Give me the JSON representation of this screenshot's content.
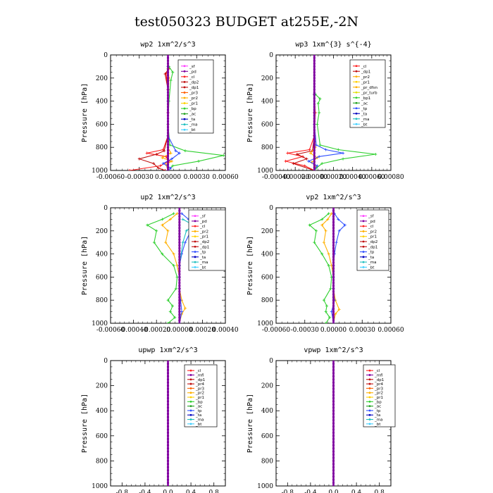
{
  "figure_title": "test050323  BUDGET at255E,-2N",
  "chart_data": [
    {
      "type": "line",
      "title": "wp2   1xm^2/s^3",
      "ylabel": "Pressure [hPa]",
      "xlim": [
        -0.0006,
        0.0006
      ],
      "xticks": [
        -0.0006,
        -0.0003,
        0.0,
        0.0003,
        0.0006
      ],
      "xtick_labels": [
        "-0.00060",
        "-0.00030",
        "0.00000",
        "0.00030",
        "0.00060"
      ],
      "ylim": [
        1000,
        0
      ],
      "yticks": [
        0,
        200,
        400,
        600,
        800,
        1000
      ],
      "ytick_labels": [
        "0",
        "200",
        "400",
        "600",
        "800",
        "1000"
      ],
      "legend": [
        "_sf",
        "_pd",
        "_cl",
        "_dp2",
        "_dp1",
        "_pr3",
        "_pr2",
        "_pr1",
        "_bp",
        "_ac",
        "_ta",
        "_ma",
        "_bt"
      ],
      "series": [
        {
          "name": "_cl",
          "color": "#ff2020",
          "pressure": [
            120,
            160,
            300,
            500,
            700,
            820,
            850,
            880,
            920,
            960,
            1000
          ],
          "values": [
            0.0,
            -2e-05,
            0.0,
            0.0,
            0.0,
            -5e-05,
            -0.00022,
            -2e-05,
            1e-05,
            -8e-05,
            -0.0004
          ]
        },
        {
          "name": "_dp2",
          "color": "#c01010",
          "pressure": [
            120,
            165,
            300,
            500,
            700,
            830,
            860,
            900,
            940,
            980,
            1000
          ],
          "values": [
            1e-05,
            -3e-05,
            0.0,
            0.0,
            0.0,
            -4e-05,
            -0.00012,
            -0.0003,
            -0.00015,
            -0.0001,
            -3e-05
          ]
        },
        {
          "name": "_pr1",
          "color": "#ffb000",
          "pressure": [
            120,
            200,
            400,
            600,
            800,
            850,
            890,
            920,
            950,
            1000
          ],
          "values": [
            0.0,
            1e-05,
            0.0,
            0.0,
            0.0,
            3e-05,
            -6e-05,
            4e-05,
            -2e-05,
            0.0
          ]
        },
        {
          "name": "_bp",
          "color": "#30d030",
          "pressure": [
            100,
            150,
            220,
            400,
            600,
            780,
            830,
            870,
            920,
            960,
            1000
          ],
          "values": [
            1e-05,
            5e-05,
            3e-05,
            1e-05,
            0.0,
            2e-05,
            0.00018,
            0.00058,
            0.00032,
            5e-05,
            0.0
          ]
        },
        {
          "name": "_ac",
          "color": "#3050ff",
          "pressure": [
            100,
            400,
            700,
            830,
            850,
            900,
            940,
            980,
            1000
          ],
          "values": [
            0.0,
            0.0,
            0.0,
            8e-05,
            0.00012,
            4e-05,
            -5e-05,
            3e-05,
            0.0
          ]
        },
        {
          "name": "_bt",
          "color": "#8000a0",
          "pressure": [
            0,
            200,
            400,
            600,
            800,
            1000
          ],
          "values": [
            0.0,
            0.0,
            0.0,
            0.0,
            0.0,
            0.0
          ]
        }
      ]
    },
    {
      "type": "line",
      "title": "wp3   1xm^{3} s^{-4}",
      "ylabel": "Pressure [hPa]",
      "xlim": [
        -0.0004,
        0.0008
      ],
      "xticks": [
        -0.0004,
        -0.0002,
        0.0,
        0.0002,
        0.0004,
        0.0006,
        0.0008
      ],
      "xtick_labels": [
        "-0.00040",
        "-0.00020",
        "0.00000",
        "0.00020",
        "0.00040",
        "0.00060",
        "0.00080"
      ],
      "ylim": [
        1000,
        0
      ],
      "yticks": [
        0,
        200,
        400,
        600,
        800,
        1000
      ],
      "ytick_labels": [
        "0",
        "200",
        "400",
        "600",
        "800",
        "1000"
      ],
      "legend": [
        "_cl",
        "_dp1",
        "_pr2",
        "_pr1",
        "_pr_dfsn",
        "_pr_turb",
        "_bp1",
        "_ac",
        "_tp",
        "_ta",
        "_ma",
        "_bt"
      ],
      "series": [
        {
          "name": "_cl",
          "color": "#ff2020",
          "pressure": [
            340,
            500,
            700,
            820,
            850,
            880,
            920,
            960,
            1000
          ],
          "values": [
            0.0,
            1e-05,
            0.0,
            -5e-05,
            -0.00028,
            -0.00012,
            -0.0003,
            -0.0001,
            0.0
          ]
        },
        {
          "name": "_dp1",
          "color": "#c01010",
          "pressure": [
            340,
            500,
            700,
            830,
            860,
            900,
            940,
            1000
          ],
          "values": [
            0.0,
            0.0,
            0.0,
            -2e-05,
            -0.00018,
            -8e-05,
            -0.00022,
            0.0
          ]
        },
        {
          "name": "_pr1",
          "color": "#ffb000",
          "pressure": [
            340,
            600,
            800,
            850,
            890,
            930,
            970,
            1000
          ],
          "values": [
            0.0,
            0.0,
            1e-05,
            -4e-05,
            3e-05,
            -3e-05,
            2e-05,
            0.0
          ]
        },
        {
          "name": "_bp1",
          "color": "#30d030",
          "pressure": [
            340,
            380,
            420,
            500,
            600,
            780,
            820,
            860,
            900,
            940,
            980,
            1000
          ],
          "values": [
            1e-05,
            6e-05,
            4e-05,
            5e-05,
            3e-05,
            6e-05,
            0.00025,
            0.00064,
            0.0003,
            8e-05,
            2e-05,
            0.0
          ]
        },
        {
          "name": "_ac",
          "color": "#3050ff",
          "pressure": [
            340,
            600,
            780,
            820,
            850,
            880,
            920,
            960,
            1000
          ],
          "values": [
            0.0,
            0.0,
            2e-05,
            0.00012,
            0.0003,
            5e-05,
            -6e-05,
            3e-05,
            0.0
          ]
        },
        {
          "name": "_bt",
          "color": "#8000a0",
          "pressure": [
            0,
            200,
            400,
            600,
            800,
            1000
          ],
          "values": [
            0.0,
            0.0,
            0.0,
            0.0,
            0.0,
            0.0
          ]
        }
      ]
    },
    {
      "type": "line",
      "title": "up2   1xm^2/s^3",
      "ylabel": "Pressure [hPa]",
      "xlim": [
        -0.0006,
        0.0004
      ],
      "xticks": [
        -0.0006,
        -0.0004,
        -0.0002,
        0.0,
        0.0002,
        0.0004
      ],
      "xtick_labels": [
        "-0.00060",
        "-0.00040",
        "-0.00020",
        "0.00000",
        "0.00020",
        "0.00040"
      ],
      "ylim": [
        1000,
        0
      ],
      "yticks": [
        0,
        200,
        400,
        600,
        800,
        1000
      ],
      "ytick_labels": [
        "0",
        "200",
        "400",
        "600",
        "800",
        "1000"
      ],
      "legend": [
        "_sf",
        "_pd",
        "_cl",
        "_pr2",
        "_pr1",
        "_dp2",
        "_dp1",
        "_tp",
        "_ta",
        "_ma",
        "_bt"
      ],
      "series": [
        {
          "name": "_pr1",
          "color": "#ffb000",
          "pressure": [
            50,
            100,
            150,
            200,
            300,
            400,
            500,
            600,
            700,
            800,
            870,
            920,
            1000
          ],
          "values": [
            -2e-05,
            -8e-05,
            -0.00015,
            -0.0001,
            -0.00012,
            -5e-05,
            -2e-05,
            0.0,
            0.0,
            2e-05,
            5e-05,
            2e-05,
            0.0
          ]
        },
        {
          "name": "_dp2",
          "color": "#30d030",
          "pressure": [
            50,
            100,
            150,
            200,
            300,
            400,
            500,
            600,
            700,
            800,
            850,
            900,
            950,
            1000
          ],
          "values": [
            -5e-05,
            -0.00015,
            -0.00028,
            -0.0002,
            -0.00022,
            -0.00015,
            -5e-05,
            -2e-05,
            -3e-05,
            -0.0001,
            -6e-05,
            -8e-05,
            -4e-05,
            -0.0001
          ]
        },
        {
          "name": "_tp",
          "color": "#3050ff",
          "pressure": [
            50,
            100,
            150,
            200,
            300,
            400,
            500,
            600,
            700,
            800,
            900,
            1000
          ],
          "values": [
            2e-05,
            8e-05,
            0.00018,
            0.0001,
            5e-05,
            2e-05,
            0.0,
            0.0,
            0.0,
            1e-05,
            2e-05,
            0.0
          ]
        },
        {
          "name": "_ma",
          "color": "#20c0c0",
          "pressure": [
            100,
            150,
            200,
            300,
            500,
            1000
          ],
          "values": [
            3e-05,
            0.00012,
            6e-05,
            3e-05,
            0.0,
            0.0
          ]
        },
        {
          "name": "_bt",
          "color": "#8000a0",
          "pressure": [
            0,
            200,
            400,
            600,
            800,
            1000
          ],
          "values": [
            0.0,
            0.0,
            0.0,
            0.0,
            0.0,
            0.0
          ]
        }
      ]
    },
    {
      "type": "line",
      "title": "vp2   1xm^2/s^3",
      "ylabel": "Pressure [hPa]",
      "xlim": [
        -0.0006,
        0.0006
      ],
      "xticks": [
        -0.0006,
        -0.0003,
        0.0,
        0.0003,
        0.0006
      ],
      "xtick_labels": [
        "-0.00060",
        "-0.00030",
        "0.00000",
        "0.00030",
        "0.00060"
      ],
      "ylim": [
        1000,
        0
      ],
      "yticks": [
        0,
        200,
        400,
        600,
        800,
        1000
      ],
      "ytick_labels": [
        "0",
        "200",
        "400",
        "600",
        "800",
        "1000"
      ],
      "legend": [
        "_sf",
        "_pd",
        "_cl",
        "_pr2",
        "_pr1",
        "_dp2",
        "_dp1",
        "_tp",
        "_ta",
        "_ma",
        "_bt"
      ],
      "series": [
        {
          "name": "_pr1",
          "color": "#ffb000",
          "pressure": [
            50,
            100,
            150,
            200,
            300,
            400,
            500,
            600,
            700,
            800,
            880,
            920,
            1000
          ],
          "values": [
            -2e-05,
            -6e-05,
            -0.00012,
            -8e-05,
            -0.0001,
            -5e-05,
            -2e-05,
            0.0,
            0.0,
            2e-05,
            6e-05,
            2e-05,
            0.0
          ]
        },
        {
          "name": "_dp2",
          "color": "#30d030",
          "pressure": [
            50,
            100,
            150,
            200,
            300,
            400,
            500,
            600,
            700,
            800,
            850,
            900,
            950,
            1000
          ],
          "values": [
            -5e-05,
            -0.00012,
            -0.00025,
            -0.00018,
            -0.0002,
            -0.00012,
            -5e-05,
            -2e-05,
            -3e-05,
            -0.0001,
            -7e-05,
            -8e-05,
            -4e-05,
            -8e-05
          ]
        },
        {
          "name": "_tp",
          "color": "#3050ff",
          "pressure": [
            50,
            100,
            150,
            200,
            300,
            400,
            500,
            600,
            700,
            800,
            900,
            1000
          ],
          "values": [
            1e-05,
            5e-05,
            0.00012,
            6e-05,
            3e-05,
            1e-05,
            0.0,
            0.0,
            0.0,
            1e-05,
            -2e-05,
            0.0
          ]
        },
        {
          "name": "_bt",
          "color": "#8000a0",
          "pressure": [
            0,
            200,
            400,
            600,
            800,
            1000
          ],
          "values": [
            0.0,
            0.0,
            0.0,
            0.0,
            0.0,
            0.0
          ]
        }
      ]
    },
    {
      "type": "line",
      "title": "upwp   1xm^2/s^3",
      "ylabel": "Pressure [hPa]",
      "xlim": [
        -1.0,
        1.0
      ],
      "xticks": [
        -0.8,
        -0.4,
        0.0,
        0.4,
        0.8
      ],
      "xtick_labels": [
        "-0.8",
        "-0.4",
        "0.0",
        "0.4",
        "0.8"
      ],
      "ylim": [
        1000,
        0
      ],
      "yticks": [
        0,
        200,
        400,
        600,
        800,
        1000
      ],
      "ytick_labels": [
        "0",
        "200",
        "400",
        "600",
        "800",
        "1000"
      ],
      "legend": [
        "_cl",
        "_mfl",
        "_dp1",
        "_pr4",
        "_pr3",
        "_pr2",
        "_pr1",
        "_bp",
        "_ac",
        "_tp",
        "_ta",
        "_ma",
        "_bt"
      ],
      "series": [
        {
          "name": "_bt",
          "color": "#8000a0",
          "pressure": [
            0,
            200,
            400,
            600,
            800,
            1000
          ],
          "values": [
            0.0,
            0.0,
            0.0,
            0.0,
            0.0,
            0.0
          ]
        }
      ]
    },
    {
      "type": "line",
      "title": "vpwp   1xm^2/s^3",
      "ylabel": "Pressure [hPa]",
      "xlim": [
        -1.0,
        1.0
      ],
      "xticks": [
        -0.8,
        -0.4,
        0.0,
        0.4,
        0.8
      ],
      "xtick_labels": [
        "-0.8",
        "-0.4",
        "0.0",
        "0.4",
        "0.8"
      ],
      "ylim": [
        1000,
        0
      ],
      "yticks": [
        0,
        200,
        400,
        600,
        800,
        1000
      ],
      "ytick_labels": [
        "0",
        "200",
        "400",
        "600",
        "800",
        "1000"
      ],
      "legend": [
        "_cl",
        "_mfl",
        "_dp1",
        "_pr4",
        "_pr3",
        "_pr2",
        "_pr1",
        "_bp",
        "_ac",
        "_tp",
        "_ta",
        "_ma",
        "_bt"
      ],
      "series": [
        {
          "name": "_bt",
          "color": "#8000a0",
          "pressure": [
            0,
            200,
            400,
            600,
            800,
            1000
          ],
          "values": [
            0.0,
            0.0,
            0.0,
            0.0,
            0.0,
            0.0
          ]
        }
      ]
    }
  ],
  "legend_colors": {
    "_sf": "#ff40ff",
    "_pd": "#8000a0",
    "_cl": "#ff2020",
    "_mfl": "#8000a0",
    "_dp2": "#c01010",
    "_dp1": "#c01010",
    "_pr4": "#c01010",
    "_pr3": "#ff6000",
    "_pr2": "#ffb000",
    "_pr1": "#ffd000",
    "_pr_dfsn": "#ffb000",
    "_pr_turb": "#e0e000",
    "_bp": "#30d030",
    "_bp1": "#30d030",
    "_ac": "#20a020",
    "_tp": "#3050ff",
    "_ta": "#0000c0",
    "_ma": "#20c0c0",
    "_bt": "#40d0ff"
  }
}
